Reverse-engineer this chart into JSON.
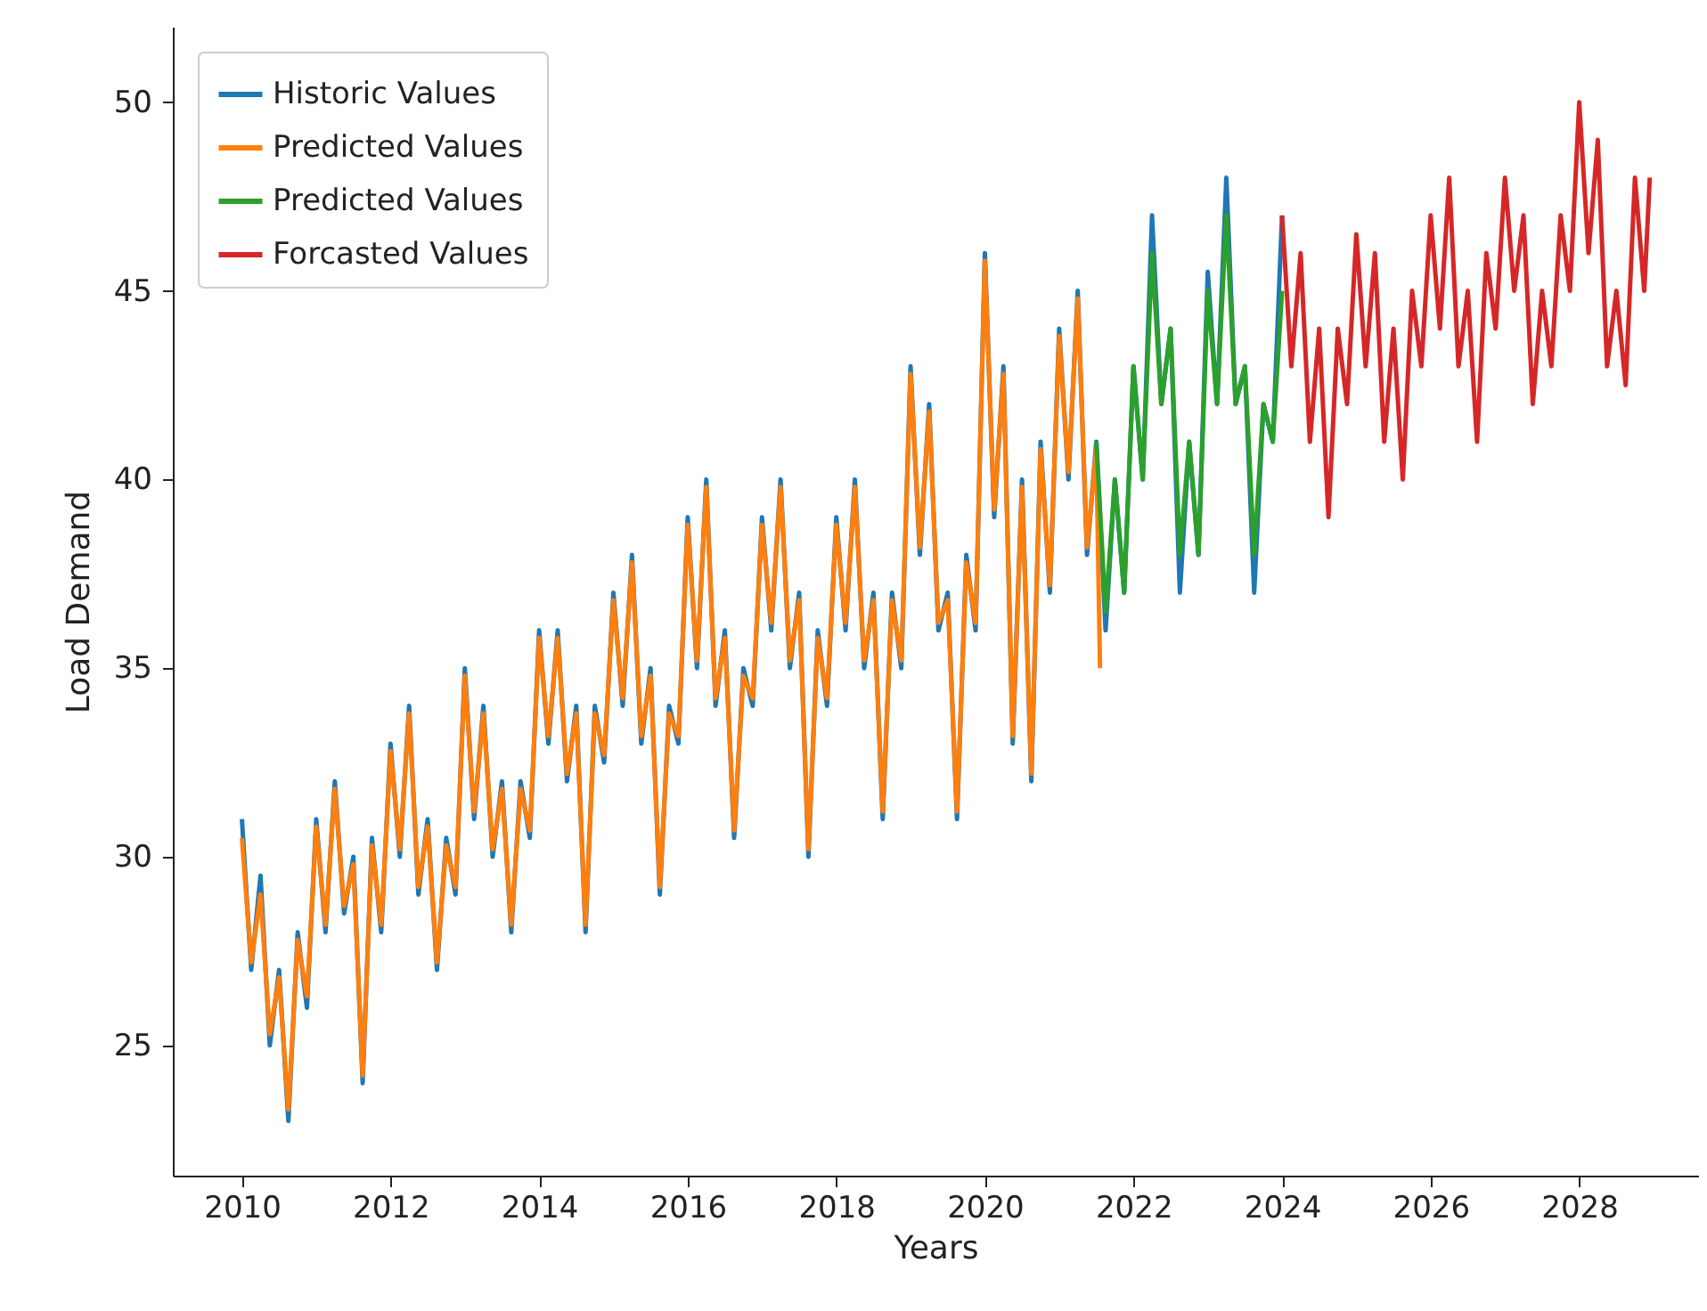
{
  "chart_data": {
    "type": "line",
    "xlabel": "Years",
    "ylabel": "Load Demand",
    "xlim": [
      2009.07,
      2029.6
    ],
    "ylim": [
      21.55,
      52
    ],
    "xticks": [
      2010,
      2012,
      2014,
      2016,
      2018,
      2020,
      2022,
      2024,
      2026,
      2028
    ],
    "yticks": [
      25,
      30,
      35,
      40,
      45,
      50
    ],
    "legend": "top left",
    "marker": "none",
    "series": [
      {
        "name": "Historic Values",
        "color": "#1f77b4",
        "x": [
          2010,
          2010.125,
          2010.25,
          2010.375,
          2010.5,
          2010.625,
          2010.75,
          2010.875,
          2011,
          2011.125,
          2011.25,
          2011.375,
          2011.5,
          2011.625,
          2011.75,
          2011.875,
          2012,
          2012.125,
          2012.25,
          2012.375,
          2012.5,
          2012.625,
          2012.75,
          2012.875,
          2013,
          2013.125,
          2013.25,
          2013.375,
          2013.5,
          2013.625,
          2013.75,
          2013.875,
          2014,
          2014.125,
          2014.25,
          2014.375,
          2014.5,
          2014.625,
          2014.75,
          2014.875,
          2015,
          2015.125,
          2015.25,
          2015.375,
          2015.5,
          2015.625,
          2015.75,
          2015.875,
          2016,
          2016.125,
          2016.25,
          2016.375,
          2016.5,
          2016.625,
          2016.75,
          2016.875,
          2017,
          2017.125,
          2017.25,
          2017.375,
          2017.5,
          2017.625,
          2017.75,
          2017.875,
          2018,
          2018.125,
          2018.25,
          2018.375,
          2018.5,
          2018.625,
          2018.75,
          2018.875,
          2019,
          2019.125,
          2019.25,
          2019.375,
          2019.5,
          2019.625,
          2019.75,
          2019.875,
          2020,
          2020.125,
          2020.25,
          2020.375,
          2020.5,
          2020.625,
          2020.75,
          2020.875,
          2021,
          2021.125,
          2021.25,
          2021.375,
          2021.5,
          2021.625,
          2021.75,
          2021.875,
          2022,
          2022.125,
          2022.25,
          2022.375,
          2022.5,
          2022.625,
          2022.75,
          2022.875,
          2023,
          2023.125,
          2023.25,
          2023.375,
          2023.5,
          2023.625,
          2023.75,
          2023.875,
          2024
        ],
        "values": [
          31,
          27,
          29.5,
          25,
          27,
          23,
          28,
          26,
          31,
          28,
          32,
          28.5,
          30,
          24,
          30.5,
          28,
          33,
          30,
          34,
          29,
          31,
          27,
          30.5,
          29,
          35,
          31,
          34,
          30,
          32,
          28,
          32,
          30.5,
          36,
          33,
          36,
          32,
          34,
          28,
          34,
          32.5,
          37,
          34,
          38,
          33,
          35,
          29,
          34,
          33,
          39,
          35,
          40,
          34,
          36,
          30.5,
          35,
          34,
          39,
          36,
          40,
          35,
          37,
          30,
          36,
          34,
          39,
          36,
          40,
          35,
          37,
          31,
          37,
          35,
          43,
          38,
          42,
          36,
          37,
          31,
          38,
          36,
          46,
          39,
          43,
          33,
          40,
          32,
          41,
          37,
          44,
          40,
          45,
          38,
          41,
          36,
          40,
          37,
          43,
          40,
          47,
          42,
          44,
          37,
          41,
          38,
          45.5,
          42,
          48,
          42,
          43,
          37,
          42,
          41,
          47
        ]
      },
      {
        "name": "Predicted Values",
        "color": "#ff7f0e",
        "x": [
          2010,
          2010.125,
          2010.25,
          2010.375,
          2010.5,
          2010.625,
          2010.75,
          2010.875,
          2011,
          2011.125,
          2011.25,
          2011.375,
          2011.5,
          2011.625,
          2011.75,
          2011.875,
          2012,
          2012.125,
          2012.25,
          2012.375,
          2012.5,
          2012.625,
          2012.75,
          2012.875,
          2013,
          2013.125,
          2013.25,
          2013.375,
          2013.5,
          2013.625,
          2013.75,
          2013.875,
          2014,
          2014.125,
          2014.25,
          2014.375,
          2014.5,
          2014.625,
          2014.75,
          2014.875,
          2015,
          2015.125,
          2015.25,
          2015.375,
          2015.5,
          2015.625,
          2015.75,
          2015.875,
          2016,
          2016.125,
          2016.25,
          2016.375,
          2016.5,
          2016.625,
          2016.75,
          2016.875,
          2017,
          2017.125,
          2017.25,
          2017.375,
          2017.5,
          2017.625,
          2017.75,
          2017.875,
          2018,
          2018.125,
          2018.25,
          2018.375,
          2018.5,
          2018.625,
          2018.75,
          2018.875,
          2019,
          2019.125,
          2019.25,
          2019.375,
          2019.5,
          2019.625,
          2019.75,
          2019.875,
          2020,
          2020.125,
          2020.25,
          2020.375,
          2020.5,
          2020.625,
          2020.75,
          2020.875,
          2021,
          2021.125,
          2021.25,
          2021.375,
          2021.5,
          2021.55
        ],
        "values": [
          30.5,
          27.2,
          29,
          25.3,
          26.8,
          23.3,
          27.8,
          26.3,
          30.8,
          28.2,
          31.8,
          28.7,
          29.8,
          24.2,
          30.3,
          28.2,
          32.8,
          30.2,
          33.8,
          29.2,
          30.8,
          27.2,
          30.3,
          29.2,
          34.8,
          31.2,
          33.8,
          30.2,
          31.8,
          28.2,
          31.8,
          30.7,
          35.8,
          33.2,
          35.8,
          32.2,
          33.8,
          28.2,
          33.8,
          32.7,
          36.8,
          34.2,
          37.8,
          33.2,
          34.8,
          29.2,
          33.8,
          33.2,
          38.8,
          35.2,
          39.8,
          34.2,
          35.8,
          30.7,
          34.8,
          34.2,
          38.8,
          36.2,
          39.8,
          35.2,
          36.8,
          30.2,
          35.8,
          34.2,
          38.8,
          36.2,
          39.8,
          35.2,
          36.8,
          31.2,
          36.8,
          35.2,
          42.8,
          38.2,
          41.8,
          36.2,
          36.8,
          31.2,
          37.8,
          36.2,
          45.8,
          39.2,
          42.8,
          33.2,
          39.8,
          32.2,
          40.8,
          37.2,
          43.8,
          40.2,
          44.8,
          38.2,
          40.8,
          35
        ]
      },
      {
        "name": "Predicted Values",
        "color": "#2ca02c",
        "x": [
          2021.5,
          2021.625,
          2021.75,
          2021.875,
          2022,
          2022.125,
          2022.25,
          2022.375,
          2022.5,
          2022.625,
          2022.75,
          2022.875,
          2023,
          2023.125,
          2023.25,
          2023.375,
          2023.5,
          2023.625,
          2023.75,
          2023.875,
          2024
        ],
        "values": [
          41,
          36.5,
          40,
          37,
          43,
          40,
          46,
          42,
          44,
          38,
          41,
          38,
          45,
          42,
          47,
          42,
          43,
          38,
          42,
          41,
          45
        ]
      },
      {
        "name": "Forcasted Values",
        "color": "#d62728",
        "x": [
          2024,
          2024.125,
          2024.25,
          2024.375,
          2024.5,
          2024.625,
          2024.75,
          2024.875,
          2025,
          2025.125,
          2025.25,
          2025.375,
          2025.5,
          2025.625,
          2025.75,
          2025.875,
          2026,
          2026.125,
          2026.25,
          2026.375,
          2026.5,
          2026.625,
          2026.75,
          2026.875,
          2027,
          2027.125,
          2027.25,
          2027.375,
          2027.5,
          2027.625,
          2027.75,
          2027.875,
          2028,
          2028.125,
          2028.25,
          2028.375,
          2028.5,
          2028.625,
          2028.75,
          2028.875,
          2028.95
        ],
        "values": [
          47,
          43,
          46,
          41,
          44,
          39,
          44,
          42,
          46.5,
          43,
          46,
          41,
          44,
          40,
          45,
          43,
          47,
          44,
          48,
          43,
          45,
          41,
          46,
          44,
          48,
          45,
          47,
          42,
          45,
          43,
          47,
          45,
          50,
          46,
          49,
          43,
          45,
          42.5,
          48,
          45,
          48
        ]
      }
    ]
  }
}
